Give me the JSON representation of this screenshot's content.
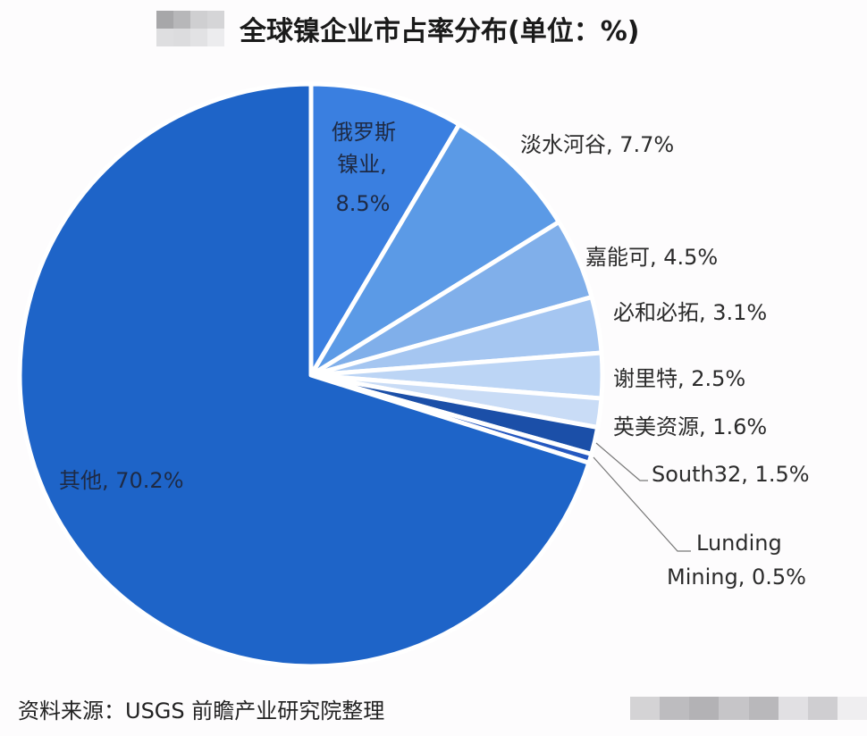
{
  "header": {
    "title": "全球镍企业市占率分布(单位：%)"
  },
  "footer": {
    "source": "资料来源：USGS 前瞻产业研究院整理"
  },
  "chart_data": {
    "type": "pie",
    "title": "全球镍企业市占率分布(单位：%)",
    "unit": "%",
    "start_angle": "12 o'clock",
    "direction": "clockwise",
    "slices": [
      {
        "label": "俄罗斯镍业",
        "value": 8.5,
        "color": "#3a7fe0",
        "text": "8.5%"
      },
      {
        "label": "淡水河谷",
        "value": 7.7,
        "color": "#5b9ae6",
        "text": "淡水河谷, 7.7%"
      },
      {
        "label": "嘉能可",
        "value": 4.5,
        "color": "#80afea",
        "text": "嘉能可, 4.5%"
      },
      {
        "label": "必和必拓",
        "value": 3.1,
        "color": "#a5c6f1",
        "text": "必和必拓, 3.1%"
      },
      {
        "label": "谢里特",
        "value": 2.5,
        "color": "#bcd5f5",
        "text": "谢里特, 2.5%"
      },
      {
        "label": "英美资源",
        "value": 1.6,
        "color": "#c9dcf6",
        "text": "英美资源, 1.6%"
      },
      {
        "label": "South32",
        "value": 1.5,
        "color": "#1b4fa8",
        "text": "South32, 1.5%"
      },
      {
        "label": "Lunding Mining",
        "value": 0.5,
        "color": "#2558c0",
        "text": "Mining, 0.5%"
      },
      {
        "label": "其他",
        "value": 70.2,
        "color": "#1e64c8",
        "text": "其他, 70.2%"
      }
    ],
    "labels": {
      "russia_line1": "俄罗斯",
      "russia_line2": "镍业,",
      "russia_line3": "8.5%",
      "lunding_line1": "Lunding",
      "lunding_line2": "Mining, 0.5%"
    },
    "source": "资料来源：USGS 前瞻产业研究院整理"
  }
}
